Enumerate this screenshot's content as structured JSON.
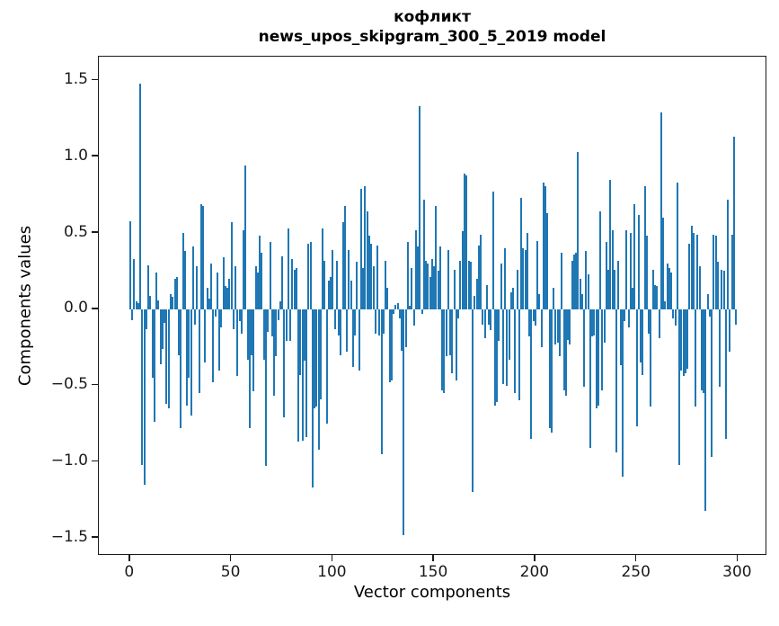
{
  "chart_data": {
    "type": "bar",
    "title_line1": "кофликт",
    "title_line2": "news_upos_skipgram_300_5_2019 model",
    "xlabel": "Vector components",
    "ylabel": "Components values",
    "bar_color": "#1f77b4",
    "spine_color": "#1a1a1a",
    "xlim": [
      -15.45,
      314.45
    ],
    "ylim": [
      -1.617,
      1.656
    ],
    "grid": false,
    "legend": "none",
    "xticks": [
      {
        "value": 0,
        "label": "0"
      },
      {
        "value": 50,
        "label": "50"
      },
      {
        "value": 100,
        "label": "100"
      },
      {
        "value": 150,
        "label": "150"
      },
      {
        "value": 200,
        "label": "200"
      },
      {
        "value": 250,
        "label": "250"
      },
      {
        "value": 300,
        "label": "300"
      }
    ],
    "yticks": [
      {
        "value": 1.5,
        "label": "1.5"
      },
      {
        "value": 1.0,
        "label": "1.0"
      },
      {
        "value": 0.5,
        "label": "0.5"
      },
      {
        "value": 0.0,
        "label": "0.0"
      },
      {
        "value": -0.5,
        "label": "−0.5"
      },
      {
        "value": -1.0,
        "label": "−1.0"
      },
      {
        "value": -1.5,
        "label": "−1.5"
      }
    ],
    "x_start": 0,
    "values": [
      0.58,
      -0.07,
      0.33,
      0.05,
      0.04,
      1.48,
      -1.02,
      -1.15,
      -0.13,
      0.29,
      0.09,
      -0.45,
      -0.74,
      0.24,
      0.06,
      -0.36,
      -0.26,
      -0.09,
      -0.62,
      -0.65,
      0.1,
      0.08,
      0.2,
      0.21,
      -0.3,
      -0.78,
      0.5,
      0.38,
      -0.63,
      -0.45,
      -0.7,
      0.41,
      -0.1,
      0.28,
      -0.55,
      0.69,
      0.68,
      -0.35,
      0.14,
      0.07,
      0.3,
      -0.48,
      -0.05,
      0.24,
      -0.4,
      -0.12,
      0.34,
      0.15,
      0.14,
      0.2,
      0.57,
      -0.13,
      0.28,
      -0.44,
      -0.08,
      -0.16,
      0.52,
      0.94,
      -0.33,
      -0.78,
      -0.3,
      -0.54,
      0.28,
      0.24,
      0.48,
      0.37,
      -0.33,
      -1.03,
      -0.15,
      0.44,
      -0.18,
      -0.57,
      -0.31,
      -0.07,
      0.05,
      0.35,
      -0.71,
      -0.21,
      0.53,
      -0.21,
      0.33,
      0.26,
      0.27,
      -0.87,
      -0.43,
      -0.86,
      -0.34,
      -0.84,
      0.43,
      0.44,
      -1.17,
      -0.65,
      -0.64,
      -0.92,
      -0.59,
      0.53,
      0.32,
      -0.75,
      0.19,
      0.21,
      0.39,
      -0.13,
      0.32,
      -0.17,
      -0.3,
      0.57,
      0.68,
      -0.28,
      0.39,
      0.19,
      -0.38,
      -0.17,
      0.31,
      -0.4,
      0.79,
      0.27,
      0.81,
      0.64,
      0.48,
      0.43,
      0.28,
      -0.16,
      0.42,
      -0.17,
      -0.95,
      -0.16,
      0.32,
      0.14,
      -0.48,
      -0.47,
      -0.03,
      0.03,
      0.04,
      -0.06,
      -0.27,
      -1.48,
      -0.25,
      0.44,
      0.02,
      0.27,
      -0.11,
      0.52,
      0.41,
      1.33,
      -0.03,
      0.72,
      0.32,
      0.3,
      0.21,
      0.33,
      0.28,
      0.68,
      0.25,
      0.41,
      -0.53,
      -0.55,
      -0.31,
      0.39,
      -0.3,
      -0.42,
      0.26,
      -0.47,
      -0.06,
      0.32,
      0.51,
      0.89,
      0.88,
      0.32,
      0.31,
      -1.2,
      0.09,
      0.2,
      0.42,
      0.49,
      -0.1,
      -0.19,
      0.16,
      -0.1,
      -0.14,
      0.77,
      -0.63,
      -0.61,
      -0.21,
      0.3,
      -0.49,
      0.4,
      -0.5,
      -0.33,
      0.11,
      0.14,
      -0.55,
      0.26,
      -0.6,
      0.73,
      0.4,
      0.39,
      0.5,
      -0.18,
      -0.85,
      -0.08,
      -0.11,
      0.45,
      0.1,
      -0.25,
      0.83,
      0.81,
      0.63,
      -0.78,
      -0.81,
      0.14,
      -0.23,
      -0.22,
      -0.31,
      0.37,
      -0.53,
      -0.57,
      -0.2,
      -0.23,
      0.32,
      0.36,
      0.37,
      1.03,
      0.2,
      0.1,
      -0.51,
      0.38,
      0.23,
      -0.91,
      -0.18,
      -0.17,
      -0.65,
      -0.63,
      0.64,
      -0.53,
      -0.22,
      0.44,
      0.26,
      0.85,
      0.52,
      0.26,
      -0.94,
      0.32,
      -0.37,
      -1.1,
      -0.08,
      0.52,
      -0.12,
      0.5,
      0.14,
      0.69,
      -0.77,
      0.62,
      -0.35,
      -0.43,
      0.81,
      0.48,
      -0.16,
      -0.64,
      0.26,
      0.16,
      0.15,
      -0.19,
      1.29,
      0.6,
      0.05,
      0.3,
      0.27,
      0.24,
      -0.06,
      -0.11,
      0.83,
      -1.02,
      -0.4,
      -0.44,
      -0.42,
      -0.39,
      0.43,
      0.55,
      0.5,
      -0.64,
      0.49,
      0.28,
      -0.53,
      -0.55,
      -1.32,
      0.1,
      -0.05,
      -0.97,
      0.49,
      0.48,
      0.31,
      -0.51,
      0.26,
      0.25,
      -0.85,
      0.72,
      -0.28,
      0.49,
      1.13,
      -0.1
    ]
  }
}
